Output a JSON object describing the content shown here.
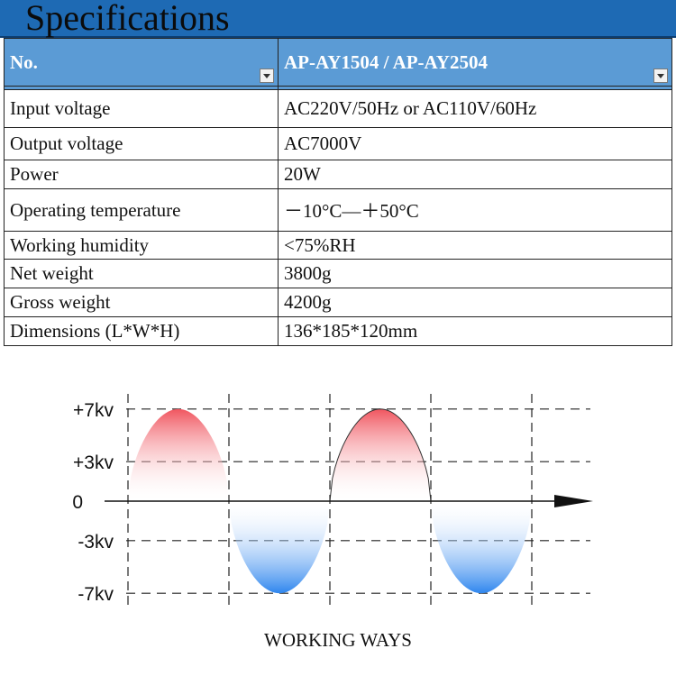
{
  "header": {
    "title": "Specifications"
  },
  "table": {
    "columns": [
      "No.",
      "AP-AY1504 / AP-AY2504"
    ],
    "rows": [
      {
        "label": "Input voltage",
        "value": "AC220V/50Hz or  AC110V/60Hz"
      },
      {
        "label": "Output voltage",
        "value": "AC7000V"
      },
      {
        "label": "Power",
        "value": "20W"
      },
      {
        "label": "Operating temperature",
        "value": "－10°C—＋50°C"
      },
      {
        "label": "Working humidity",
        "value": "<75%RH"
      },
      {
        "label": "Net weight",
        "value": "3800g"
      },
      {
        "label": "Gross weight",
        "value": "4200g"
      },
      {
        "label": "Dimensions (L*W*H)",
        "value": "136*185*120mm"
      }
    ]
  },
  "chart_data": {
    "type": "area",
    "y_tick_labels": [
      "+7kv",
      "+3kv",
      "0",
      "-3kv",
      "-7kv"
    ],
    "y_ticks": [
      7,
      3,
      0,
      -3,
      -7
    ],
    "ylim": [
      -7,
      7
    ],
    "half_cycles": [
      {
        "sign": "positive",
        "peak": 7
      },
      {
        "sign": "negative",
        "peak": -7
      },
      {
        "sign": "positive",
        "peak": 7
      },
      {
        "sign": "negative",
        "peak": -7
      }
    ],
    "colors": {
      "positive": "#f0555f",
      "negative": "#2f86ee"
    },
    "grid": "dashed"
  },
  "caption": "WORKING WAYS"
}
